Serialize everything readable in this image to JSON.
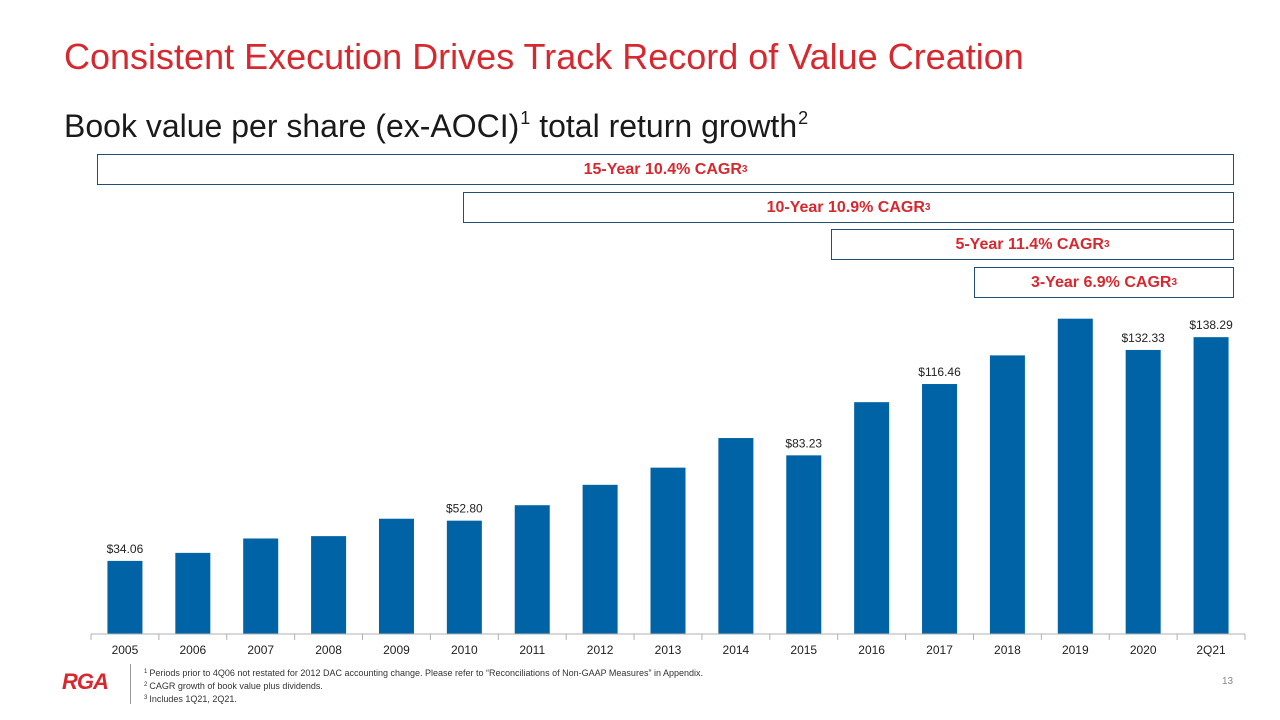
{
  "slide": {
    "title": "Consistent Execution Drives Track Record of Value Creation",
    "subtitle": "Book value per share (ex-AOCI)",
    "subtitle_sup1": "1",
    "subtitle_rest": " total return growth",
    "subtitle_sup2": "2",
    "page_number": "13",
    "logo": "RGA"
  },
  "cagr_boxes": [
    {
      "label": "15-Year 10.4% CAGR",
      "sup": "3"
    },
    {
      "label": "10-Year 10.9% CAGR",
      "sup": "3"
    },
    {
      "label": "5-Year 11.4% CAGR",
      "sup": "3"
    },
    {
      "label": "3-Year 6.9% CAGR",
      "sup": "3"
    }
  ],
  "footnotes": [
    {
      "sup": "1",
      "text": "Periods prior to 4Q06 not restated for 2012 DAC accounting change. Please refer to “Reconciliations of Non-GAAP Measures” in Appendix."
    },
    {
      "sup": "2",
      "text": "CAGR growth of book value plus dividends."
    },
    {
      "sup": "3",
      "text": "Includes 1Q21, 2Q21."
    }
  ],
  "colors": {
    "bar": "#0063a6",
    "accent": "#d7282f",
    "box_border": "#1f4e79"
  },
  "chart_data": {
    "type": "bar",
    "title": "",
    "xlabel": "",
    "ylabel": "",
    "categories": [
      "2005",
      "2006",
      "2007",
      "2008",
      "2009",
      "2010",
      "2011",
      "2012",
      "2013",
      "2014",
      "2015",
      "2016",
      "2017",
      "2018",
      "2019",
      "2020",
      "2Q21"
    ],
    "values": [
      34.06,
      37.8,
      44.5,
      45.6,
      53.7,
      52.8,
      60.0,
      69.5,
      77.5,
      91.3,
      83.23,
      108.0,
      116.46,
      129.8,
      146.9,
      132.33,
      138.29
    ],
    "data_labels": [
      "$34.06",
      "",
      "",
      "",
      "",
      "$52.80",
      "",
      "",
      "",
      "",
      "$83.23",
      "",
      "$116.46",
      "",
      "",
      "$132.33",
      "$138.29"
    ],
    "ylim": [
      0,
      157
    ],
    "grid": false,
    "legend": "none"
  }
}
